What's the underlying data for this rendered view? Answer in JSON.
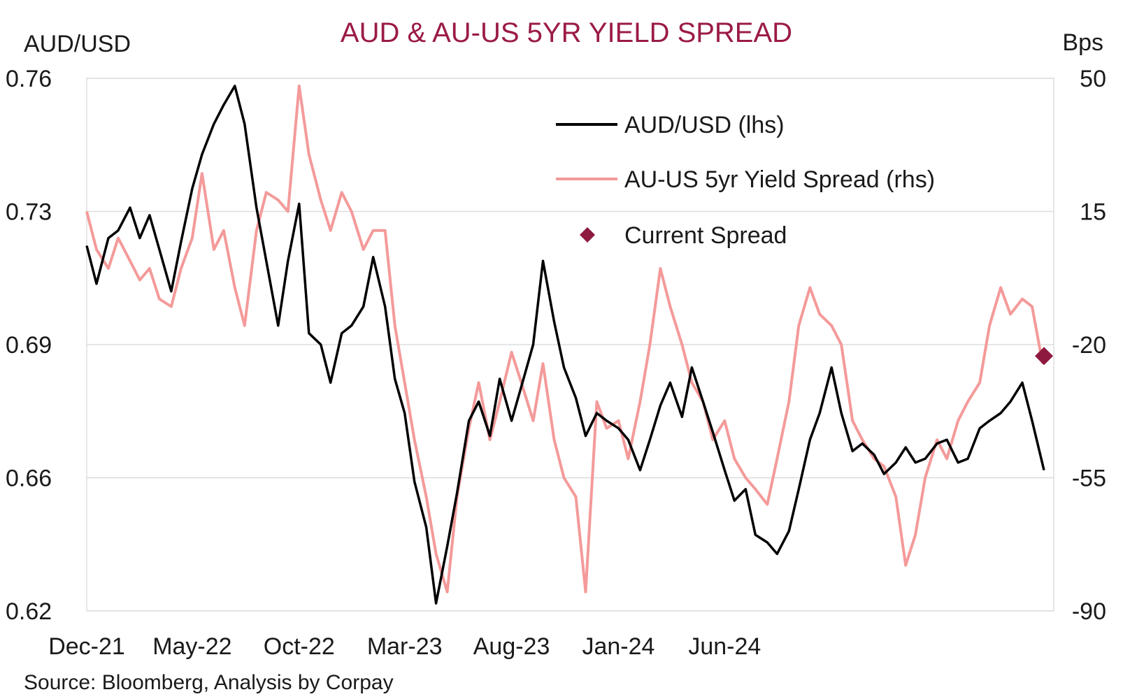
{
  "chart_data": {
    "type": "line",
    "title": "AUD & AU-US 5YR YIELD SPREAD",
    "source": "Source: Bloomberg, Analysis by Corpay",
    "y_left": {
      "label": "AUD/USD",
      "ticks": [
        "0.76",
        "0.73",
        "0.69",
        "0.66",
        "0.62"
      ],
      "range": [
        0.62,
        0.76
      ]
    },
    "y_right": {
      "label": "Bps",
      "ticks": [
        "50",
        "15",
        "-20",
        "-55",
        "-90"
      ],
      "range": [
        -90,
        50
      ]
    },
    "x_ticks": [
      "Dec-21",
      "May-22",
      "Oct-22",
      "Mar-23",
      "Aug-23",
      "Jan-24",
      "Jun-24"
    ],
    "grid": true,
    "legend_position": "top-right",
    "colors": {
      "title": "#9b1b46",
      "aud": "#000000",
      "spread": "#f49a9a",
      "marker": "#8e1a3f",
      "grid": "#dddddd"
    },
    "series": [
      {
        "name": "AUD/USD (lhs)",
        "axis": "left",
        "points": [
          [
            "2021-12-01",
            0.716
          ],
          [
            "2021-12-15",
            0.706
          ],
          [
            "2022-01-01",
            0.718
          ],
          [
            "2022-01-15",
            0.72
          ],
          [
            "2022-02-01",
            0.726
          ],
          [
            "2022-02-15",
            0.718
          ],
          [
            "2022-03-01",
            0.724
          ],
          [
            "2022-03-15",
            0.715
          ],
          [
            "2022-04-01",
            0.704
          ],
          [
            "2022-04-15",
            0.717
          ],
          [
            "2022-05-01",
            0.731
          ],
          [
            "2022-05-15",
            0.74
          ],
          [
            "2022-06-01",
            0.748
          ],
          [
            "2022-06-15",
            0.753
          ],
          [
            "2022-07-01",
            0.758
          ],
          [
            "2022-07-15",
            0.748
          ],
          [
            "2022-08-01",
            0.726
          ],
          [
            "2022-08-15",
            0.712
          ],
          [
            "2022-09-01",
            0.695
          ],
          [
            "2022-09-15",
            0.712
          ],
          [
            "2022-10-01",
            0.727
          ],
          [
            "2022-10-15",
            0.693
          ],
          [
            "2022-11-01",
            0.69
          ],
          [
            "2022-11-15",
            0.68
          ],
          [
            "2022-12-01",
            0.693
          ],
          [
            "2022-12-15",
            0.695
          ],
          [
            "2023-01-01",
            0.7
          ],
          [
            "2023-01-15",
            0.713
          ],
          [
            "2023-02-01",
            0.7
          ],
          [
            "2023-02-15",
            0.681
          ],
          [
            "2023-03-01",
            0.672
          ],
          [
            "2023-03-15",
            0.654
          ],
          [
            "2023-04-01",
            0.642
          ],
          [
            "2023-04-15",
            0.622
          ],
          [
            "2023-05-01",
            0.637
          ],
          [
            "2023-05-15",
            0.651
          ],
          [
            "2023-06-01",
            0.67
          ],
          [
            "2023-06-15",
            0.675
          ],
          [
            "2023-07-01",
            0.666
          ],
          [
            "2023-07-15",
            0.681
          ],
          [
            "2023-08-01",
            0.67
          ],
          [
            "2023-08-15",
            0.679
          ],
          [
            "2023-09-01",
            0.69
          ],
          [
            "2023-09-15",
            0.712
          ],
          [
            "2023-10-01",
            0.696
          ],
          [
            "2023-10-15",
            0.684
          ],
          [
            "2023-11-01",
            0.676
          ],
          [
            "2023-11-15",
            0.666
          ],
          [
            "2023-12-01",
            0.672
          ],
          [
            "2023-12-15",
            0.67
          ],
          [
            "2024-01-01",
            0.668
          ],
          [
            "2024-01-15",
            0.665
          ],
          [
            "2024-02-01",
            0.657
          ],
          [
            "2024-02-15",
            0.665
          ],
          [
            "2024-03-01",
            0.674
          ],
          [
            "2024-03-15",
            0.68
          ],
          [
            "2024-04-01",
            0.671
          ],
          [
            "2024-04-15",
            0.684
          ],
          [
            "2024-05-01",
            0.675
          ],
          [
            "2024-05-15",
            0.667
          ],
          [
            "2024-06-01",
            0.657
          ],
          [
            "2024-06-15",
            0.649
          ],
          [
            "2024-07-01",
            0.652
          ],
          [
            "2024-07-15",
            0.64
          ],
          [
            "2024-08-01",
            0.638
          ],
          [
            "2024-08-15",
            0.635
          ],
          [
            "2024-09-01",
            0.641
          ],
          [
            "2024-09-15",
            0.652
          ],
          [
            "2024-10-01",
            0.665
          ],
          [
            "2024-10-15",
            0.672
          ],
          [
            "2024-11-01",
            0.684
          ],
          [
            "2024-11-15",
            0.672
          ],
          [
            "2024-12-01",
            0.662
          ],
          [
            "2024-12-15",
            0.664
          ],
          [
            "2025-01-01",
            0.661
          ],
          [
            "2025-01-15",
            0.656
          ],
          [
            "2025-02-01",
            0.659
          ],
          [
            "2025-02-15",
            0.663
          ],
          [
            "2025-03-01",
            0.659
          ],
          [
            "2025-03-15",
            0.66
          ],
          [
            "2025-04-01",
            0.664
          ],
          [
            "2025-04-15",
            0.665
          ],
          [
            "2025-05-01",
            0.659
          ],
          [
            "2025-05-15",
            0.66
          ],
          [
            "2025-06-01",
            0.668
          ],
          [
            "2025-06-15",
            0.67
          ],
          [
            "2025-07-01",
            0.672
          ],
          [
            "2025-07-15",
            0.675
          ],
          [
            "2025-08-01",
            0.68
          ],
          [
            "2025-08-15",
            0.67
          ],
          [
            "2025-09-01",
            0.657
          ]
        ]
      },
      {
        "name": "AU-US 5yr Yield Spread (rhs)",
        "axis": "right",
        "points": [
          [
            "2021-12-01",
            15
          ],
          [
            "2021-12-15",
            5
          ],
          [
            "2022-01-01",
            0
          ],
          [
            "2022-01-15",
            8
          ],
          [
            "2022-02-01",
            2
          ],
          [
            "2022-02-15",
            -3
          ],
          [
            "2022-03-01",
            0
          ],
          [
            "2022-03-15",
            -8
          ],
          [
            "2022-04-01",
            -10
          ],
          [
            "2022-04-15",
            0
          ],
          [
            "2022-05-01",
            8
          ],
          [
            "2022-05-15",
            25
          ],
          [
            "2022-06-01",
            5
          ],
          [
            "2022-06-15",
            10
          ],
          [
            "2022-07-01",
            -5
          ],
          [
            "2022-07-15",
            -15
          ],
          [
            "2022-08-01",
            10
          ],
          [
            "2022-08-15",
            20
          ],
          [
            "2022-09-01",
            18
          ],
          [
            "2022-09-15",
            15
          ],
          [
            "2022-10-01",
            48
          ],
          [
            "2022-10-15",
            30
          ],
          [
            "2022-11-01",
            18
          ],
          [
            "2022-11-15",
            10
          ],
          [
            "2022-12-01",
            20
          ],
          [
            "2022-12-15",
            15
          ],
          [
            "2023-01-01",
            5
          ],
          [
            "2023-01-15",
            10
          ],
          [
            "2023-02-01",
            10
          ],
          [
            "2023-02-15",
            -15
          ],
          [
            "2023-03-01",
            -30
          ],
          [
            "2023-03-15",
            -45
          ],
          [
            "2023-04-01",
            -60
          ],
          [
            "2023-04-15",
            -75
          ],
          [
            "2023-05-01",
            -85
          ],
          [
            "2023-05-15",
            -60
          ],
          [
            "2023-06-01",
            -42
          ],
          [
            "2023-06-15",
            -30
          ],
          [
            "2023-07-01",
            -45
          ],
          [
            "2023-07-15",
            -35
          ],
          [
            "2023-08-01",
            -22
          ],
          [
            "2023-08-15",
            -30
          ],
          [
            "2023-09-01",
            -40
          ],
          [
            "2023-09-15",
            -25
          ],
          [
            "2023-10-01",
            -45
          ],
          [
            "2023-10-15",
            -55
          ],
          [
            "2023-11-01",
            -60
          ],
          [
            "2023-11-15",
            -85
          ],
          [
            "2023-12-01",
            -35
          ],
          [
            "2023-12-15",
            -42
          ],
          [
            "2024-01-01",
            -40
          ],
          [
            "2024-01-15",
            -50
          ],
          [
            "2024-02-01",
            -35
          ],
          [
            "2024-02-15",
            -20
          ],
          [
            "2024-03-01",
            0
          ],
          [
            "2024-03-15",
            -10
          ],
          [
            "2024-04-01",
            -20
          ],
          [
            "2024-04-15",
            -30
          ],
          [
            "2024-05-01",
            -35
          ],
          [
            "2024-05-15",
            -45
          ],
          [
            "2024-06-01",
            -40
          ],
          [
            "2024-06-15",
            -50
          ],
          [
            "2024-07-01",
            -55
          ],
          [
            "2024-07-15",
            -58
          ],
          [
            "2024-08-01",
            -62
          ],
          [
            "2024-08-15",
            -50
          ],
          [
            "2024-09-01",
            -35
          ],
          [
            "2024-09-15",
            -15
          ],
          [
            "2024-10-01",
            -5
          ],
          [
            "2024-10-15",
            -12
          ],
          [
            "2024-11-01",
            -15
          ],
          [
            "2024-11-15",
            -20
          ],
          [
            "2024-12-01",
            -40
          ],
          [
            "2024-12-15",
            -45
          ],
          [
            "2025-01-01",
            -50
          ],
          [
            "2025-01-15",
            -52
          ],
          [
            "2025-02-01",
            -60
          ],
          [
            "2025-02-15",
            -78
          ],
          [
            "2025-03-01",
            -70
          ],
          [
            "2025-03-15",
            -55
          ],
          [
            "2025-04-01",
            -45
          ],
          [
            "2025-04-15",
            -50
          ],
          [
            "2025-05-01",
            -40
          ],
          [
            "2025-05-15",
            -35
          ],
          [
            "2025-06-01",
            -30
          ],
          [
            "2025-06-15",
            -15
          ],
          [
            "2025-07-01",
            -5
          ],
          [
            "2025-07-15",
            -12
          ],
          [
            "2025-08-01",
            -8
          ],
          [
            "2025-08-15",
            -10
          ],
          [
            "2025-08-30",
            -25
          ]
        ]
      }
    ],
    "markers": [
      {
        "name": "Current Spread",
        "axis": "right",
        "x": "2025-09-01",
        "y": -23
      }
    ]
  }
}
